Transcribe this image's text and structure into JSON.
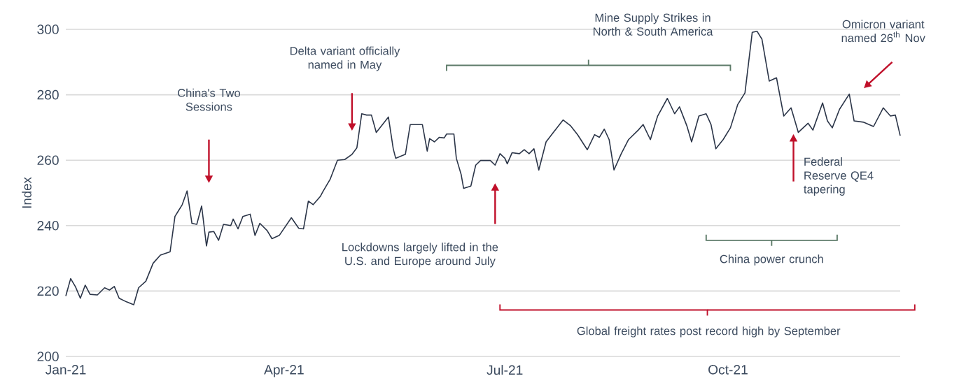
{
  "chart_data": {
    "type": "line",
    "ylabel": "Index",
    "color": "#2b3548",
    "x": [
      "2021-01-01",
      "2021-01-03",
      "2021-01-05",
      "2021-01-07",
      "2021-01-09",
      "2021-01-11",
      "2021-01-14",
      "2021-01-17",
      "2021-01-19",
      "2021-01-21",
      "2021-01-23",
      "2021-01-26",
      "2021-01-29",
      "2021-01-31",
      "2021-02-03",
      "2021-02-06",
      "2021-02-09",
      "2021-02-13",
      "2021-02-15",
      "2021-02-18",
      "2021-02-20",
      "2021-02-22",
      "2021-02-24",
      "2021-02-26",
      "2021-02-28",
      "2021-03-01",
      "2021-03-03",
      "2021-03-05",
      "2021-03-07",
      "2021-03-10",
      "2021-03-11",
      "2021-03-13",
      "2021-03-15",
      "2021-03-18",
      "2021-03-20",
      "2021-03-22",
      "2021-03-25",
      "2021-03-27",
      "2021-03-30",
      "2021-04-04",
      "2021-04-07",
      "2021-04-09",
      "2021-04-11",
      "2021-04-13",
      "2021-04-16",
      "2021-04-17",
      "2021-04-20",
      "2021-04-23",
      "2021-04-26",
      "2021-04-29",
      "2021-05-01",
      "2021-05-03",
      "2021-05-05",
      "2021-05-07",
      "2021-05-09",
      "2021-05-14",
      "2021-05-16",
      "2021-05-17",
      "2021-05-21",
      "2021-05-23",
      "2021-05-28",
      "2021-05-30",
      "2021-05-31",
      "2021-06-02",
      "2021-06-04",
      "2021-06-06",
      "2021-06-07",
      "2021-06-10",
      "2021-06-11",
      "2021-06-13",
      "2021-06-14",
      "2021-06-17",
      "2021-06-19",
      "2021-06-21",
      "2021-06-25",
      "2021-06-27",
      "2021-06-29",
      "2021-07-01",
      "2021-07-02",
      "2021-07-04",
      "2021-07-07",
      "2021-07-09",
      "2021-07-11",
      "2021-07-13",
      "2021-07-15",
      "2021-07-18",
      "2021-07-21",
      "2021-07-25",
      "2021-07-28",
      "2021-07-31",
      "2021-08-04",
      "2021-08-07",
      "2021-08-09",
      "2021-08-11",
      "2021-08-13",
      "2021-08-15",
      "2021-08-18",
      "2021-08-21",
      "2021-08-25",
      "2021-08-27",
      "2021-08-30",
      "2021-09-02",
      "2021-09-06",
      "2021-09-09",
      "2021-09-11",
      "2021-09-14",
      "2021-09-16",
      "2021-09-19",
      "2021-09-22",
      "2021-09-24",
      "2021-09-26",
      "2021-09-29",
      "2021-10-02",
      "2021-10-05",
      "2021-10-08",
      "2021-10-11",
      "2021-10-13",
      "2021-10-15",
      "2021-10-18",
      "2021-10-21",
      "2021-10-24",
      "2021-10-27",
      "2021-10-30",
      "2021-11-03",
      "2021-11-05",
      "2021-11-09",
      "2021-11-11",
      "2021-11-13",
      "2021-11-16",
      "2021-11-20",
      "2021-11-22",
      "2021-11-26",
      "2021-11-30",
      "2021-12-04",
      "2021-12-07",
      "2021-12-09",
      "2021-12-11"
    ],
    "values": [
      218.5,
      223.8,
      221.3,
      217.8,
      221.8,
      219,
      218.8,
      221,
      220.3,
      221.4,
      217.8,
      216.7,
      215.8,
      221,
      223,
      228.5,
      231,
      232,
      242.8,
      246.4,
      250.6,
      240.7,
      240.4,
      246,
      233.8,
      238,
      238.2,
      235.5,
      240.4,
      240,
      242,
      239,
      242.8,
      243.5,
      237,
      240.7,
      238.5,
      236,
      237,
      242.4,
      239.2,
      239,
      247.5,
      246.4,
      249,
      250.4,
      254.2,
      260,
      260.2,
      261.8,
      263.8,
      274.2,
      273.8,
      273.8,
      268.5,
      273.2,
      263.5,
      260.6,
      261.8,
      270.9,
      270.9,
      262.8,
      266.6,
      265.6,
      267,
      266.8,
      268,
      268,
      260.6,
      255.6,
      251.4,
      252.1,
      258.5,
      259.9,
      259.9,
      258.5,
      262,
      260.6,
      258.9,
      262.3,
      262,
      263.2,
      262,
      263.5,
      257,
      265.6,
      268.5,
      272.3,
      270.6,
      267.8,
      263.2,
      267.8,
      267,
      269.5,
      266.3,
      257,
      262,
      266.3,
      269.2,
      270.9,
      266.3,
      273.5,
      278.9,
      274.2,
      276.3,
      270.6,
      265.6,
      273.5,
      274.2,
      270.9,
      263.5,
      266.3,
      269.9,
      277,
      280.6,
      299.1,
      299.4,
      297,
      284.2,
      285.2,
      273.5,
      276,
      268.5,
      271.3,
      269.2,
      277.5,
      272,
      269.9,
      275.6,
      280.2,
      272,
      271.6,
      270.3,
      276,
      273.5,
      273.8,
      267.5
    ],
    "xlim": [
      "2021-01-01",
      "2021-12-11"
    ],
    "xticks": [
      {
        "value": "2021-01-01",
        "label": "Jan-21"
      },
      {
        "value": "2021-04-01",
        "label": "Apr-21"
      },
      {
        "value": "2021-07-01",
        "label": "Jul-21"
      },
      {
        "value": "2021-10-01",
        "label": "Oct-21"
      }
    ],
    "ylim": [
      200,
      300
    ],
    "yticks": [
      200,
      220,
      240,
      260,
      280,
      300
    ],
    "grid": "y",
    "annotations": [
      "China's Two Sessions",
      "Delta variant officially named in May",
      "Lockdowns largely lifted in the U.S. and Europe around July",
      "Federal Reserve QE4 tapering",
      "Omicron variant named 26$^{th}$ Nov",
      "Mine Supply Strikes in North & South America",
      "China power crunch",
      "Global freight rates post record high by September"
    ]
  }
}
